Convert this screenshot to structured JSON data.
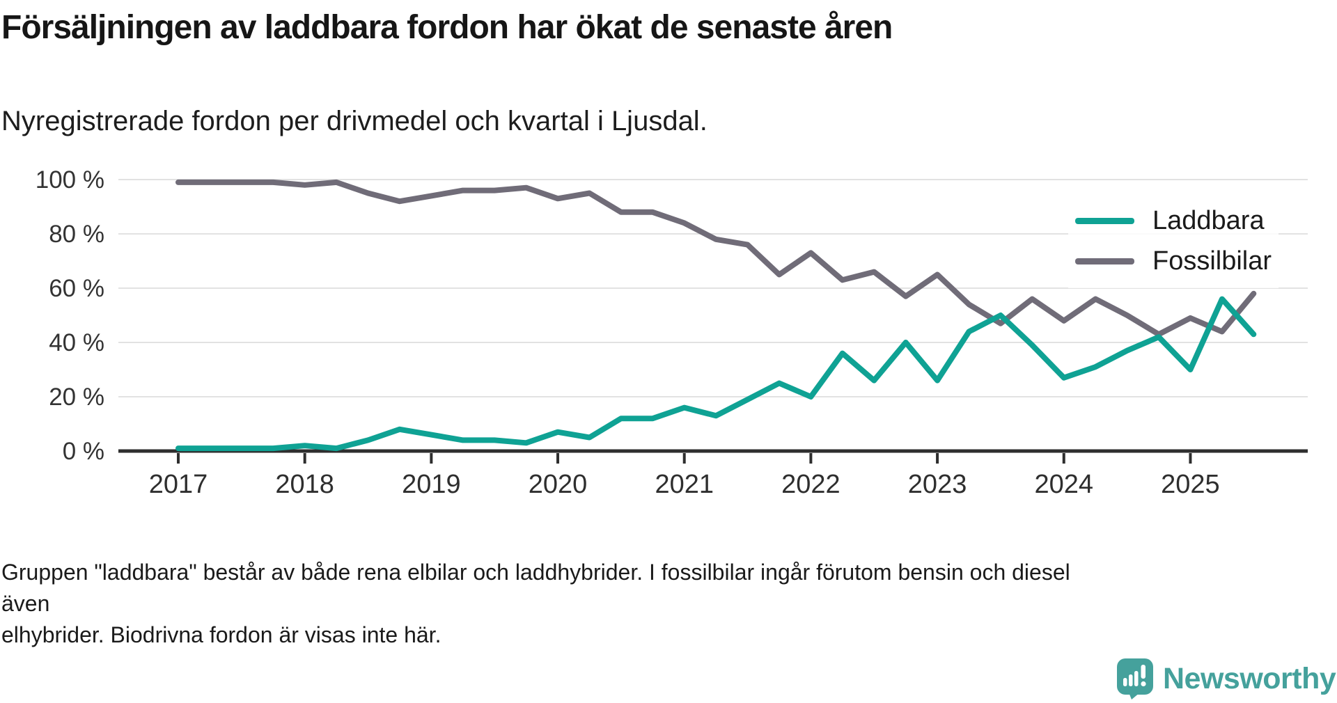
{
  "header": {
    "title": "Försäljningen av laddbara fordon har ökat de senaste åren",
    "subtitle": "Nyregistrerade fordon per drivmedel och kvartal i Ljusdal."
  },
  "legend": [
    {
      "label": "Laddbara",
      "color": "#0fa294"
    },
    {
      "label": "Fossilbilar",
      "color": "#706c78"
    }
  ],
  "footer": {
    "line1": "Gruppen \"laddbara\" består av både rena elbilar och laddhybrider. I fossilbilar ingår förutom bensin och diesel även",
    "line2": "elhybrider. Biodrivna fordon är visas inte här."
  },
  "branding": {
    "logo_text": "Newsworthy",
    "logo_color": "#45a19c",
    "logo_icon": "newsworthy-speech-bubble-chart-icon"
  },
  "chart_data": {
    "type": "line",
    "title": "Försäljningen av laddbara fordon har ökat de senaste åren",
    "subtitle": "Nyregistrerade fordon per drivmedel och kvartal i Ljusdal.",
    "xlabel": "",
    "ylabel": "",
    "ylim": [
      0,
      100
    ],
    "grid": "horizontal",
    "legend_position": "upper right",
    "ytick_suffix": " %",
    "yticks": [
      0,
      20,
      40,
      60,
      80,
      100
    ],
    "xticks": [
      2017,
      2018,
      2019,
      2020,
      2021,
      2022,
      2023,
      2024,
      2025
    ],
    "x": [
      "2017Q1",
      "2017Q2",
      "2017Q3",
      "2017Q4",
      "2018Q1",
      "2018Q2",
      "2018Q3",
      "2018Q4",
      "2019Q1",
      "2019Q2",
      "2019Q3",
      "2019Q4",
      "2020Q1",
      "2020Q2",
      "2020Q3",
      "2020Q4",
      "2021Q1",
      "2021Q2",
      "2021Q3",
      "2021Q4",
      "2022Q1",
      "2022Q2",
      "2022Q3",
      "2022Q4",
      "2023Q1",
      "2023Q2",
      "2023Q3",
      "2023Q4",
      "2024Q1",
      "2024Q2",
      "2024Q3",
      "2024Q4",
      "2025Q1",
      "2025Q2",
      "2025Q3"
    ],
    "series": [
      {
        "name": "Laddbara",
        "color": "#0fa294",
        "unit": "%",
        "values": [
          1,
          1,
          1,
          1,
          2,
          1,
          4,
          8,
          6,
          4,
          4,
          3,
          7,
          5,
          12,
          12,
          16,
          13,
          19,
          25,
          20,
          36,
          26,
          40,
          26,
          44,
          50,
          39,
          27,
          31,
          37,
          42,
          30,
          56,
          43
        ]
      },
      {
        "name": "Fossilbilar",
        "color": "#706c78",
        "unit": "%",
        "values": [
          99,
          99,
          99,
          99,
          98,
          99,
          95,
          92,
          94,
          96,
          96,
          97,
          93,
          95,
          88,
          88,
          84,
          78,
          76,
          65,
          73,
          63,
          66,
          57,
          65,
          54,
          47,
          56,
          48,
          56,
          50,
          43,
          49,
          44,
          58
        ]
      }
    ]
  }
}
